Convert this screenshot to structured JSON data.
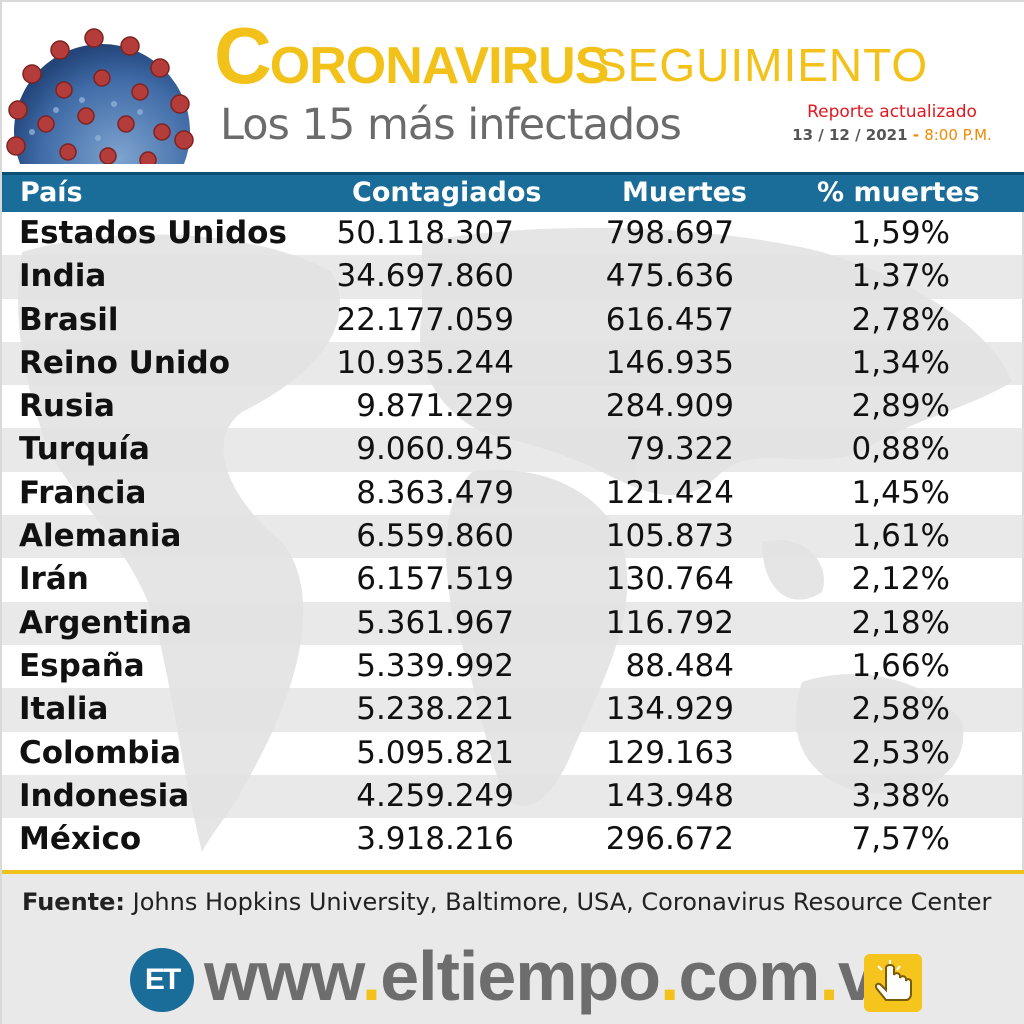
{
  "header": {
    "title_initial": "C",
    "title_rest": "ORONAVIRUS",
    "title_second": "SEGUIMIENTO",
    "subtitle": "Los 15 más infectados",
    "report_label": "Reporte actualizado",
    "report_date": "13 / 12 / 2021",
    "report_sep": " - ",
    "report_time": "8:00 P.M."
  },
  "table": {
    "headers": [
      "País",
      "Contagiados",
      "Muertes",
      "% muertes"
    ],
    "rows": [
      {
        "country": "Estados Unidos",
        "cases": "50.118.307",
        "deaths": "798.697",
        "pct": "1,59%"
      },
      {
        "country": "India",
        "cases": "34.697.860",
        "deaths": "475.636",
        "pct": "1,37%"
      },
      {
        "country": "Brasil",
        "cases": "22.177.059",
        "deaths": "616.457",
        "pct": "2,78%"
      },
      {
        "country": "Reino Unido",
        "cases": "10.935.244",
        "deaths": "146.935",
        "pct": "1,34%"
      },
      {
        "country": "Rusia",
        "cases": "9.871.229",
        "deaths": "284.909",
        "pct": "2,89%"
      },
      {
        "country": "Turquía",
        "cases": "9.060.945",
        "deaths": "79.322",
        "pct": "0,88%"
      },
      {
        "country": "Francia",
        "cases": "8.363.479",
        "deaths": "121.424",
        "pct": "1,45%"
      },
      {
        "country": "Alemania",
        "cases": "6.559.860",
        "deaths": "105.873",
        "pct": "1,61%"
      },
      {
        "country": "Irán",
        "cases": "6.157.519",
        "deaths": "130.764",
        "pct": "2,12%"
      },
      {
        "country": "Argentina",
        "cases": "5.361.967",
        "deaths": "116.792",
        "pct": "2,18%"
      },
      {
        "country": "España",
        "cases": "5.339.992",
        "deaths": "88.484",
        "pct": "1,66%"
      },
      {
        "country": "Italia",
        "cases": "5.238.221",
        "deaths": "134.929",
        "pct": "2,58%"
      },
      {
        "country": "Colombia",
        "cases": "5.095.821",
        "deaths": "129.163",
        "pct": "2,53%"
      },
      {
        "country": "Indonesia",
        "cases": "4.259.249",
        "deaths": "143.948",
        "pct": "3,38%"
      },
      {
        "country": "México",
        "cases": "3.918.216",
        "deaths": "296.672",
        "pct": "7,57%"
      }
    ]
  },
  "footer": {
    "source_label": "Fuente:",
    "source_text": " Johns Hopkins University, Baltimore, USA, Coronavirus Resource Center",
    "logo_text": "ET",
    "url_www": "www",
    "url_dot1": ".",
    "url_name": "eltiempo",
    "url_dot2": ".",
    "url_com": "com",
    "url_dot3": ".",
    "url_ve": "ve"
  },
  "icons": [
    "virus-icon",
    "world-map-background",
    "et-logo",
    "hand-pointer-icon"
  ],
  "colors": {
    "title_yellow": "#f2c21b",
    "header_blue": "#1a6c99",
    "report_red": "#e2171f",
    "time_orange": "#f08a00",
    "text_gray": "#6b6b6b"
  }
}
